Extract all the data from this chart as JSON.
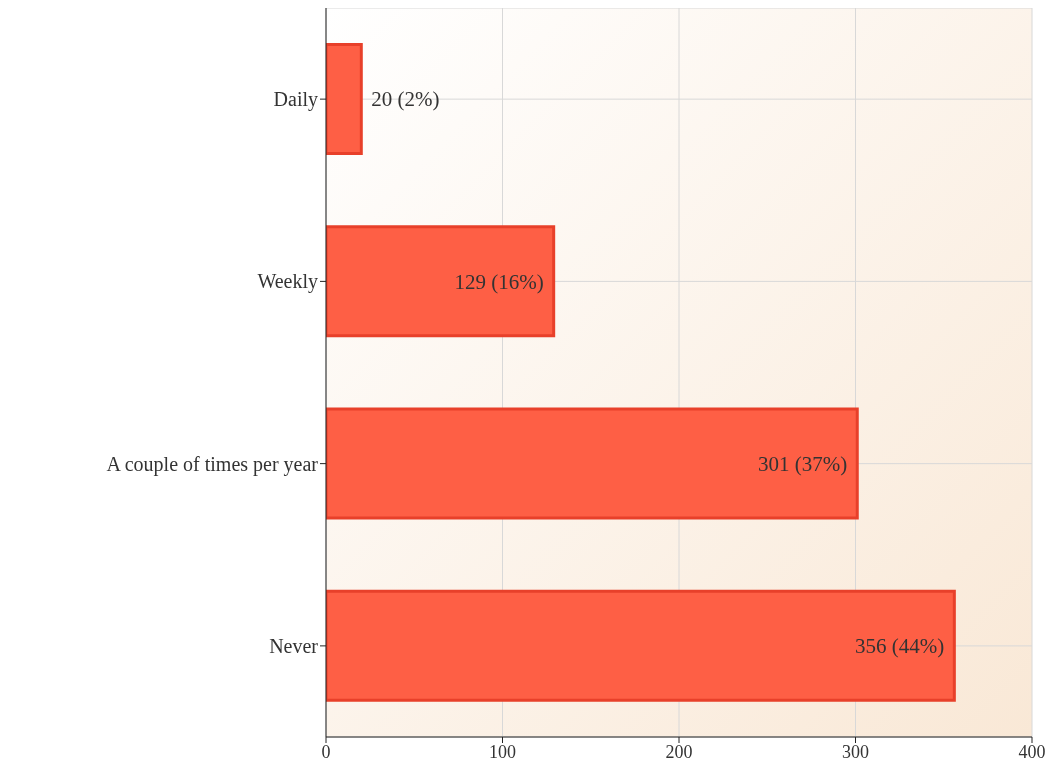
{
  "chart_data": {
    "type": "bar",
    "orientation": "horizontal",
    "categories": [
      "Daily",
      "Weekly",
      "A couple of times per year",
      "Never"
    ],
    "values": [
      20,
      129,
      301,
      356
    ],
    "value_labels": [
      "20 (2%)",
      "129 (16%)",
      "301 (37%)",
      "356 (44%)"
    ],
    "color": "#fe5f45",
    "xlim": [
      0,
      400
    ],
    "xticks": [
      0,
      100,
      200,
      300,
      400
    ],
    "grid": true
  }
}
